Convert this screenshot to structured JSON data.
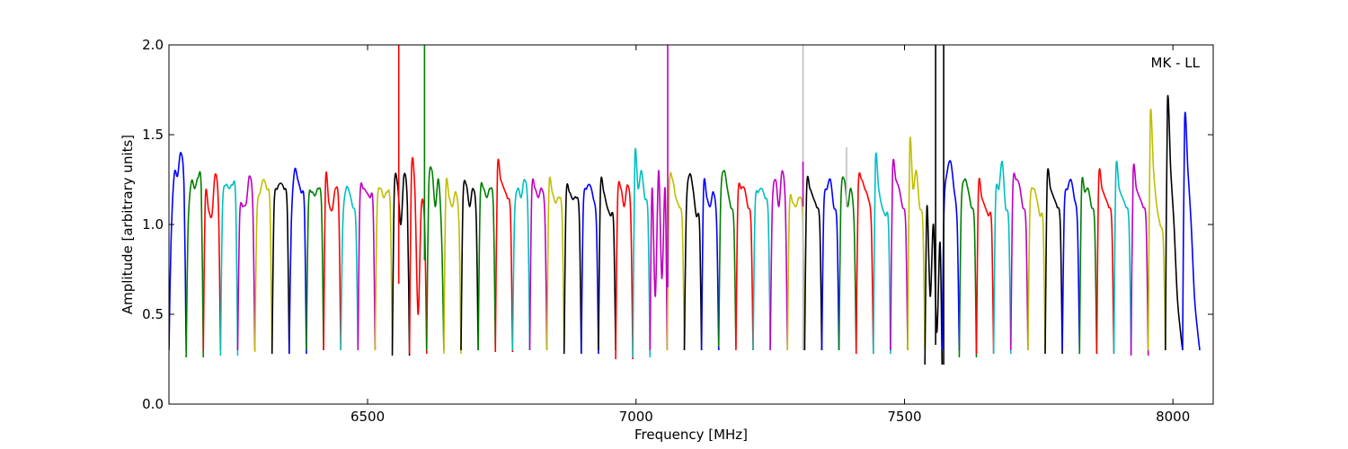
{
  "chart_data": {
    "type": "line",
    "title": "",
    "xlabel": "Frequency [MHz]",
    "ylabel": "Amplitude [arbitrary units]",
    "xlim": [
      6130,
      8075
    ],
    "ylim": [
      0.0,
      2.0
    ],
    "xticks": [
      6500,
      7000,
      7500,
      8000
    ],
    "yticks": [
      0.0,
      0.5,
      1.0,
      1.5,
      2.0
    ],
    "xtick_labels": [
      "6500",
      "7000",
      "7500",
      "8000"
    ],
    "ytick_labels": [
      "0.0",
      "0.5",
      "1.0",
      "1.5",
      "2.0"
    ],
    "annotation": "MK - LL",
    "grid": false,
    "legend": "none",
    "channel_width_mhz": 32,
    "first_channel_start_mhz": 6130,
    "color_cycle": [
      "#0000ff",
      "#007f00",
      "#ff0000",
      "#00bfbf",
      "#bf00bf",
      "#bfbf00",
      "#000000"
    ],
    "rfi_color": "#c0c0c0",
    "series": [
      {
        "color": "#0000ff",
        "values": [
          0.3,
          0.9,
          1.28,
          1.27,
          1.4,
          1.2,
          0.3
        ]
      },
      {
        "color": "#007f00",
        "values": [
          0.26,
          1.0,
          1.24,
          1.2,
          1.26,
          1.2,
          0.26
        ]
      },
      {
        "color": "#ff0000",
        "values": [
          0.3,
          1.15,
          1.08,
          1.05,
          1.28,
          1.1,
          0.3
        ]
      },
      {
        "color": "#00bfbf",
        "values": [
          0.27,
          1.1,
          1.22,
          1.2,
          1.22,
          1.15,
          0.27
        ]
      },
      {
        "color": "#bf00bf",
        "values": [
          0.3,
          1.05,
          1.1,
          1.12,
          1.27,
          1.1,
          0.3
        ]
      },
      {
        "color": "#bfbf00",
        "values": [
          0.29,
          1.05,
          1.18,
          1.25,
          1.2,
          1.1,
          0.29
        ]
      },
      {
        "color": "#000000",
        "values": [
          0.28,
          1.1,
          1.2,
          1.23,
          1.2,
          1.1,
          0.28
        ]
      },
      {
        "color": "#0000ff",
        "values": [
          0.28,
          1.0,
          1.3,
          1.25,
          1.18,
          1.1,
          0.28
        ]
      },
      {
        "color": "#007f00",
        "values": [
          0.3,
          1.1,
          1.18,
          1.16,
          1.2,
          1.1,
          0.3
        ]
      },
      {
        "color": "#ff0000",
        "values": [
          0.3,
          1.25,
          1.12,
          1.08,
          1.2,
          1.1,
          0.3
        ]
      },
      {
        "color": "#00bfbf",
        "values": [
          0.3,
          1.0,
          1.2,
          1.18,
          1.1,
          1.0,
          0.3
        ]
      },
      {
        "color": "#bf00bf",
        "values": [
          0.3,
          1.15,
          1.2,
          1.18,
          1.15,
          1.1,
          0.3
        ]
      },
      {
        "color": "#bfbf00",
        "values": [
          0.3,
          1.1,
          1.2,
          1.15,
          1.18,
          1.1,
          0.3
        ]
      },
      {
        "color": "#000000",
        "values": [
          0.27,
          1.2,
          1.22,
          1.0,
          1.28,
          1.1,
          0.27
        ]
      },
      {
        "color": "#ff0000",
        "values": [
          0.28,
          1.3,
          1.2,
          0.5,
          1.1,
          1.0,
          0.28
        ]
      },
      {
        "color": "#007f00",
        "values": [
          0.3,
          1.2,
          1.3,
          1.1,
          1.25,
          0.9,
          0.3
        ]
      },
      {
        "color": "#bfbf00",
        "values": [
          0.28,
          1.2,
          1.15,
          1.1,
          1.18,
          1.0,
          0.28
        ]
      },
      {
        "color": "#000000",
        "values": [
          0.3,
          1.15,
          1.22,
          1.1,
          1.2,
          1.05,
          0.3
        ]
      },
      {
        "color": "#007f00",
        "values": [
          0.3,
          1.15,
          1.2,
          1.15,
          1.2,
          1.1,
          0.3
        ]
      },
      {
        "color": "#ff0000",
        "values": [
          0.29,
          1.3,
          1.25,
          1.2,
          1.15,
          1.05,
          0.29
        ]
      },
      {
        "color": "#00bfbf",
        "values": [
          0.3,
          1.05,
          1.2,
          1.15,
          1.25,
          1.1,
          0.3
        ]
      },
      {
        "color": "#bf00bf",
        "values": [
          0.3,
          1.18,
          1.2,
          1.15,
          1.2,
          1.05,
          0.3
        ]
      },
      {
        "color": "#bfbf00",
        "values": [
          0.3,
          1.2,
          1.18,
          1.12,
          1.15,
          1.05,
          0.3
        ]
      },
      {
        "color": "#000000",
        "values": [
          0.28,
          1.15,
          1.18,
          1.14,
          1.15,
          1.05,
          0.28
        ]
      },
      {
        "color": "#0000ff",
        "values": [
          0.28,
          1.1,
          1.2,
          1.22,
          1.15,
          1.0,
          0.28
        ]
      },
      {
        "color": "#000000",
        "values": [
          0.3,
          1.2,
          1.18,
          1.1,
          1.05,
          1.0,
          0.3
        ]
      },
      {
        "color": "#ff0000",
        "values": [
          0.25,
          1.15,
          1.2,
          1.1,
          1.22,
          1.05,
          0.25
        ]
      },
      {
        "color": "#00bfbf",
        "values": [
          0.26,
          1.38,
          1.2,
          1.3,
          1.15,
          1.05,
          0.26
        ]
      },
      {
        "color": "#bf00bf",
        "values": [
          0.3,
          1.2,
          0.6,
          1.3,
          0.7,
          1.2,
          0.3
        ]
      },
      {
        "color": "#bfbf00",
        "values": [
          0.3,
          1.2,
          1.25,
          1.15,
          1.1,
          1.0,
          0.3
        ]
      },
      {
        "color": "#000000",
        "values": [
          0.3,
          1.1,
          1.28,
          1.2,
          1.05,
          1.0,
          0.3
        ]
      },
      {
        "color": "#0000ff",
        "values": [
          0.3,
          1.2,
          1.15,
          1.1,
          1.18,
          1.0,
          0.3
        ]
      },
      {
        "color": "#007f00",
        "values": [
          0.32,
          1.15,
          1.3,
          1.2,
          1.1,
          1.0,
          0.32
        ]
      },
      {
        "color": "#ff0000",
        "values": [
          0.3,
          1.15,
          1.2,
          1.2,
          1.1,
          1.0,
          0.3
        ]
      },
      {
        "color": "#00bfbf",
        "values": [
          0.3,
          1.1,
          1.18,
          1.2,
          1.15,
          1.05,
          0.3
        ]
      },
      {
        "color": "#bf00bf",
        "values": [
          0.3,
          1.1,
          1.25,
          1.1,
          1.3,
          1.1,
          0.3
        ]
      },
      {
        "color": "#bfbf00",
        "values": [
          0.3,
          1.1,
          1.12,
          1.1,
          1.15,
          1.05,
          0.3
        ]
      },
      {
        "color": "#000000",
        "values": [
          0.3,
          1.2,
          1.2,
          1.15,
          1.1,
          1.0,
          0.3
        ]
      },
      {
        "color": "#0000ff",
        "values": [
          0.3,
          1.1,
          1.2,
          1.25,
          1.1,
          1.0,
          0.3
        ]
      },
      {
        "color": "#007f00",
        "values": [
          0.3,
          1.15,
          1.25,
          1.1,
          1.2,
          1.0,
          0.3
        ]
      },
      {
        "color": "#ff0000",
        "values": [
          0.28,
          1.2,
          1.25,
          1.2,
          1.15,
          1.0,
          0.28
        ]
      },
      {
        "color": "#00bfbf",
        "values": [
          0.28,
          1.35,
          1.2,
          1.1,
          1.05,
          1.0,
          0.28
        ]
      },
      {
        "color": "#bf00bf",
        "values": [
          0.3,
          1.3,
          1.25,
          1.2,
          1.1,
          1.0,
          0.3
        ]
      },
      {
        "color": "#bfbf00",
        "values": [
          0.3,
          1.45,
          1.2,
          1.3,
          1.1,
          1.0,
          0.3
        ]
      },
      {
        "color": "#000000",
        "values": [
          0.22,
          1.1,
          0.6,
          1.0,
          0.4,
          0.9,
          0.22
        ]
      },
      {
        "color": "#0000ff",
        "values": [
          0.3,
          1.1,
          1.3,
          1.35,
          1.2,
          1.0,
          0.3
        ]
      },
      {
        "color": "#007f00",
        "values": [
          0.26,
          1.1,
          1.25,
          1.2,
          1.1,
          1.0,
          0.26
        ]
      },
      {
        "color": "#ff0000",
        "values": [
          0.28,
          1.2,
          1.15,
          1.1,
          1.05,
          1.0,
          0.28
        ]
      },
      {
        "color": "#00bfbf",
        "values": [
          0.28,
          1.15,
          1.2,
          1.35,
          1.1,
          1.0,
          0.28
        ]
      },
      {
        "color": "#bf00bf",
        "values": [
          0.3,
          1.2,
          1.25,
          1.22,
          1.1,
          1.0,
          0.3
        ]
      },
      {
        "color": "#bfbf00",
        "values": [
          0.3,
          1.1,
          1.2,
          1.15,
          1.05,
          1.0,
          0.3
        ]
      },
      {
        "color": "#000000",
        "values": [
          0.28,
          1.25,
          1.2,
          1.15,
          1.1,
          1.0,
          0.28
        ]
      },
      {
        "color": "#0000ff",
        "values": [
          0.3,
          1.1,
          1.2,
          1.25,
          1.15,
          1.0,
          0.3
        ]
      },
      {
        "color": "#007f00",
        "values": [
          0.28,
          1.2,
          1.18,
          1.2,
          1.1,
          1.0,
          0.28
        ]
      },
      {
        "color": "#ff0000",
        "values": [
          0.28,
          1.25,
          1.2,
          1.15,
          1.1,
          1.0,
          0.28
        ]
      },
      {
        "color": "#00bfbf",
        "values": [
          0.28,
          1.3,
          1.2,
          1.15,
          1.1,
          1.0,
          0.28
        ]
      },
      {
        "color": "#bf00bf",
        "values": [
          0.27,
          1.28,
          1.2,
          1.15,
          1.1,
          1.0,
          0.27
        ]
      },
      {
        "color": "#bfbf00",
        "values": [
          0.3,
          1.6,
          1.3,
          1.1,
          1.0,
          0.9,
          0.3
        ]
      },
      {
        "color": "#000000",
        "values": [
          0.3,
          1.68,
          1.3,
          1.0,
          0.6,
          0.4,
          0.3
        ]
      },
      {
        "color": "#0000ff",
        "values": [
          0.3,
          1.58,
          1.3,
          1.0,
          0.6,
          0.4,
          0.3
        ]
      }
    ],
    "spikes": [
      {
        "x": 6558,
        "color": "#ff0000",
        "y_top": 2.0,
        "y_bottom": 0.67
      },
      {
        "x": 6606,
        "color": "#007f00",
        "y_top": 2.0,
        "y_bottom": 0.8
      },
      {
        "x": 7059,
        "color": "#bf00bf",
        "y_top": 2.0,
        "y_bottom": 0.65
      },
      {
        "x": 7311,
        "color": "#c0c0c0",
        "y_top": 2.0,
        "y_bottom": 0.3
      },
      {
        "x": 7311,
        "color": "#bf00bf",
        "y_top": 1.35,
        "y_bottom": 1.1
      },
      {
        "x": 7392,
        "color": "#c0c0c0",
        "y_top": 1.43,
        "y_bottom": 1.1
      },
      {
        "x": 7558,
        "color": "#000000",
        "y_top": 2.0,
        "y_bottom": 0.33
      },
      {
        "x": 7573,
        "color": "#000000",
        "y_top": 2.0,
        "y_bottom": 0.22
      }
    ]
  }
}
